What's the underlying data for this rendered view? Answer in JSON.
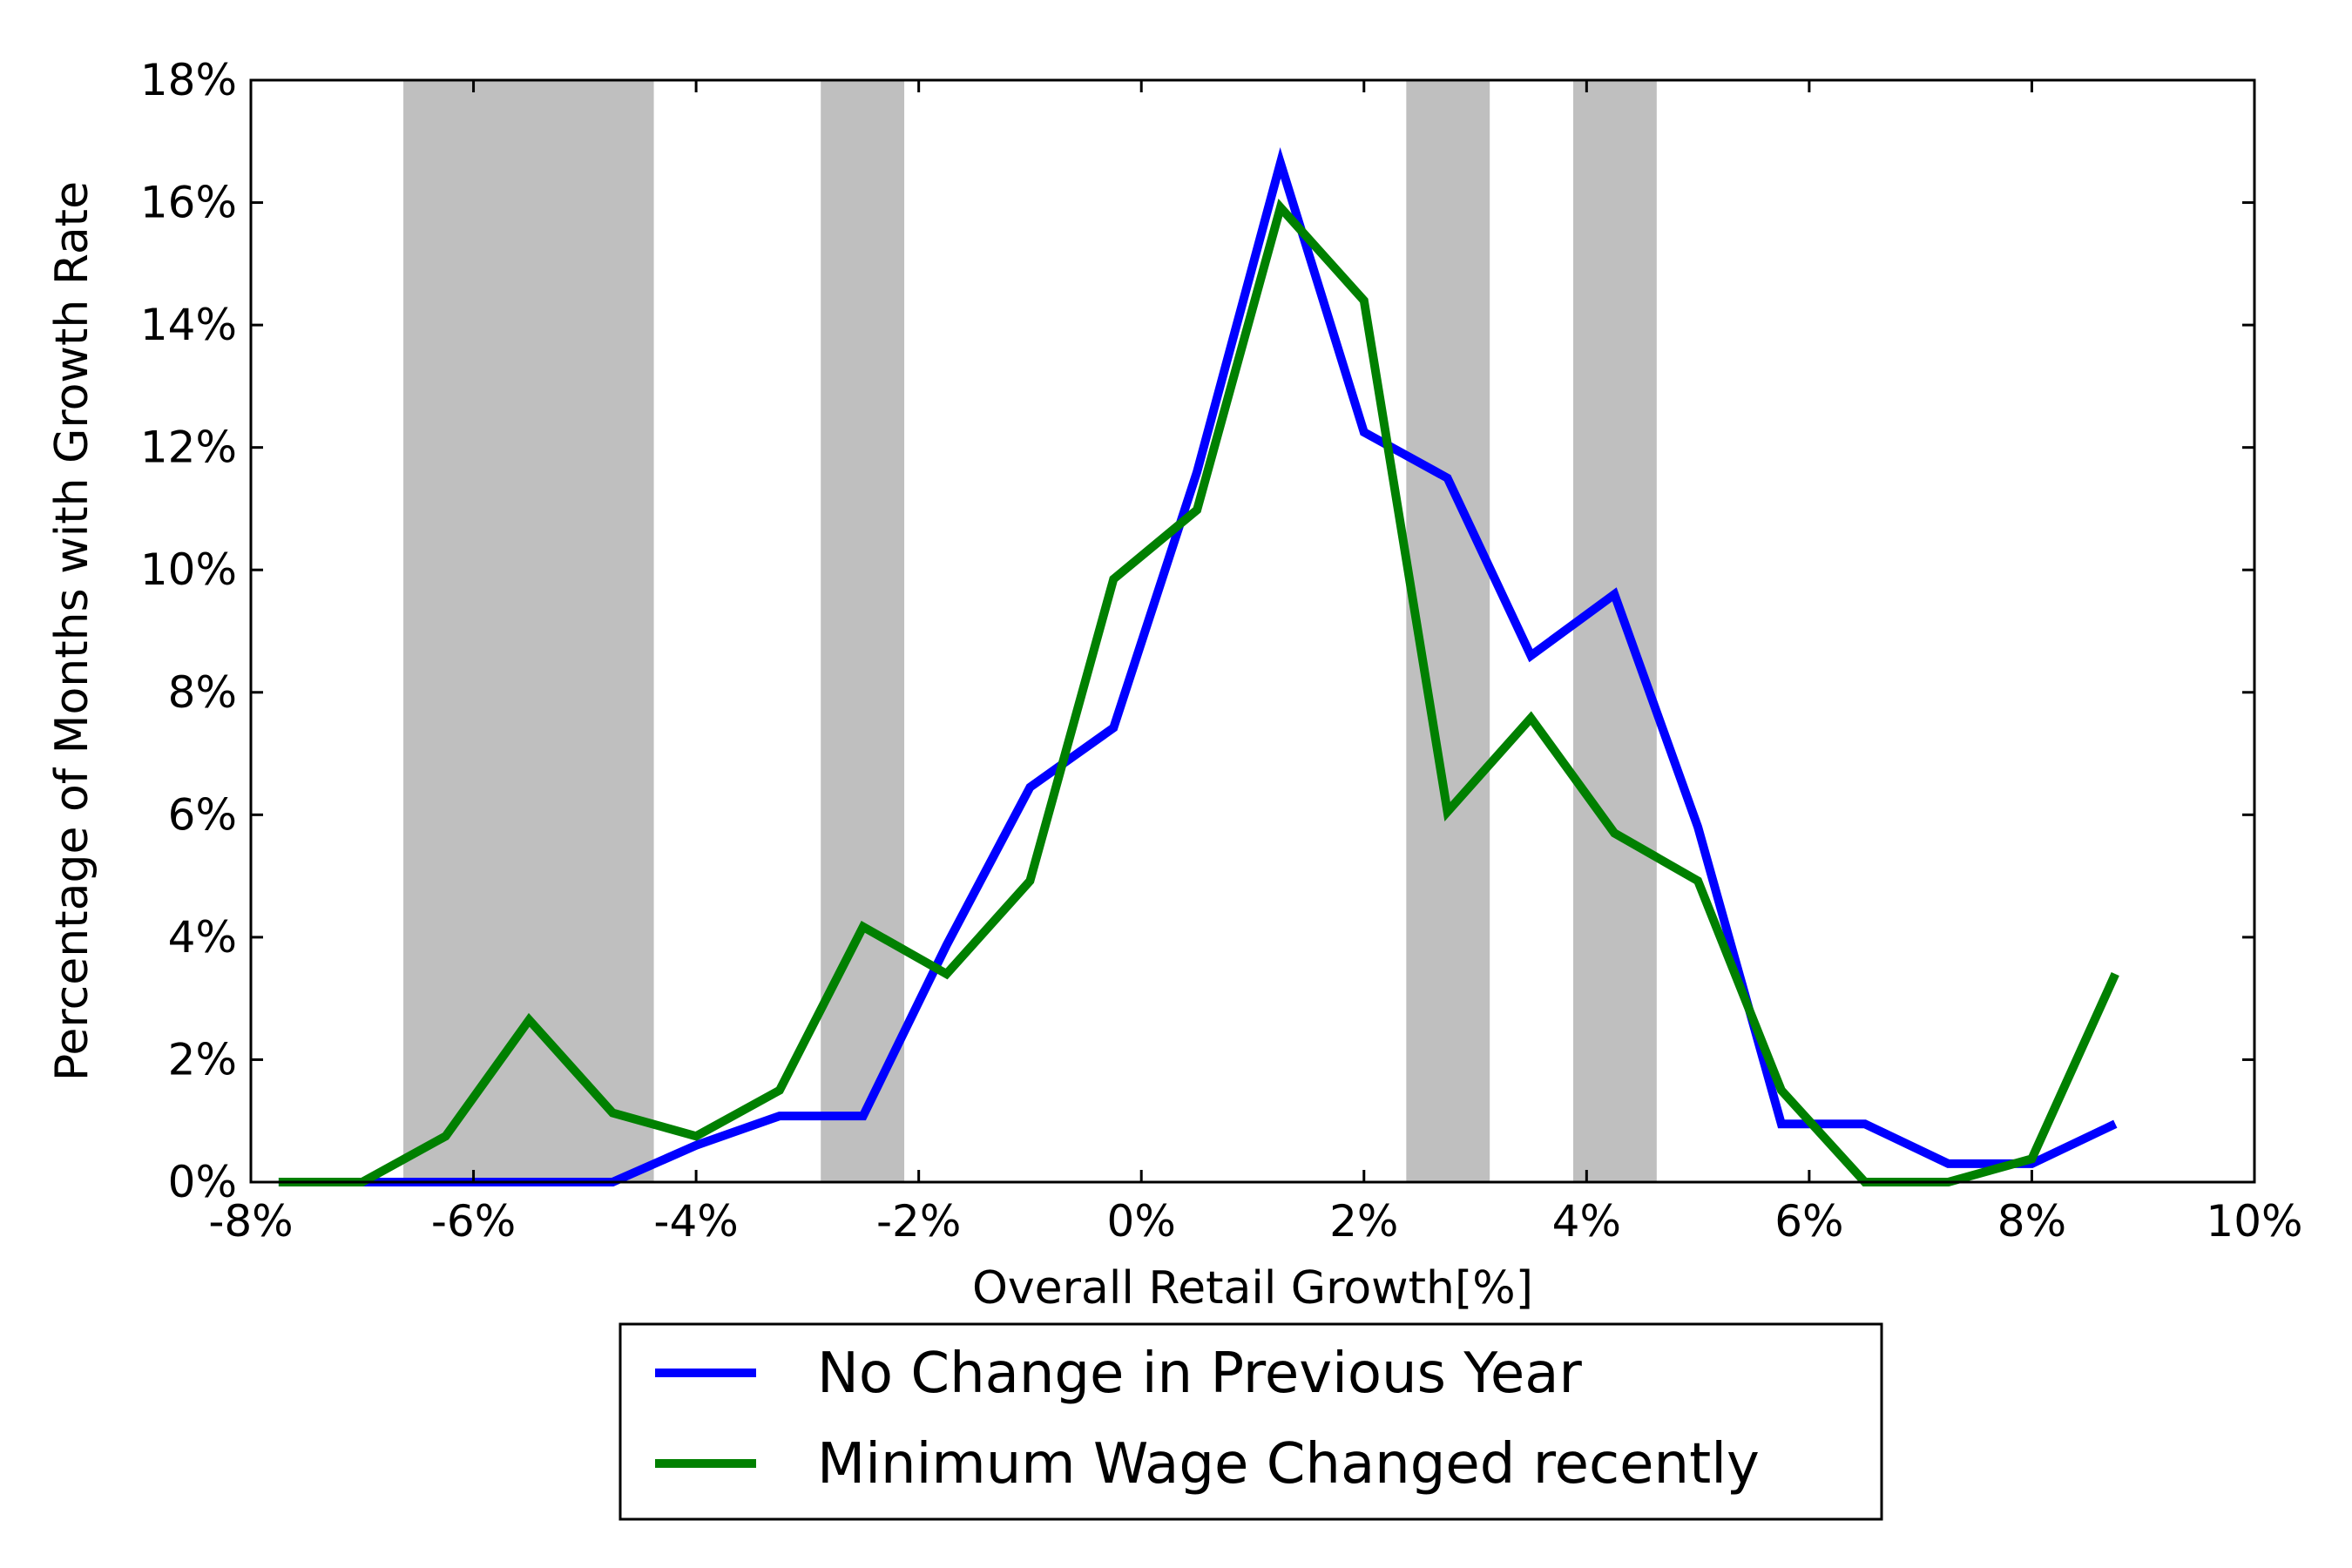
{
  "chart_data": {
    "type": "line",
    "title": "",
    "xlabel": "Overall Retail Growth[%]",
    "ylabel": "Percentage of Months with Growth Rate",
    "xlim": [
      -8,
      10
    ],
    "ylim": [
      0,
      18
    ],
    "x_ticks": [
      -8,
      -6,
      -4,
      -2,
      0,
      2,
      4,
      6,
      8,
      10
    ],
    "x_tick_labels": [
      "-8%",
      "-6%",
      "-4%",
      "-2%",
      "0%",
      "2%",
      "4%",
      "6%",
      "8%",
      "10%"
    ],
    "y_ticks": [
      0,
      2,
      4,
      6,
      8,
      10,
      12,
      14,
      16,
      18
    ],
    "y_tick_labels": [
      "0%",
      "2%",
      "4%",
      "6%",
      "8%",
      "10%",
      "12%",
      "14%",
      "16%",
      "18%"
    ],
    "grid": false,
    "legend_position": "bottom-center outside",
    "shaded_regions": [
      {
        "x_start": -6.63,
        "x_end": -4.38,
        "color": "#bfbfbf"
      },
      {
        "x_start": -2.88,
        "x_end": -2.13,
        "color": "#bfbfbf"
      },
      {
        "x_start": 2.38,
        "x_end": 3.13,
        "color": "#bfbfbf"
      },
      {
        "x_start": 3.88,
        "x_end": 4.63,
        "color": "#bfbfbf"
      }
    ],
    "series": [
      {
        "name": "No Change in Previous Year",
        "color": "#0000ff",
        "x": [
          -7.75,
          -7.0,
          -6.25,
          -5.5,
          -4.75,
          -4.0,
          -3.25,
          -2.5,
          -1.75,
          -1.0,
          -0.25,
          0.5,
          1.25,
          2.0,
          2.75,
          3.5,
          4.25,
          5.0,
          5.75,
          6.5,
          7.25,
          8.0,
          8.75
        ],
        "y": [
          0,
          0,
          0,
          0,
          0,
          0.6,
          1.08,
          1.08,
          3.87,
          6.45,
          7.42,
          11.6,
          16.65,
          12.25,
          11.5,
          8.6,
          9.6,
          5.8,
          0.95,
          0.95,
          0.3,
          0.3,
          0.95
        ]
      },
      {
        "name": "Minimum Wage Changed recently",
        "color": "#008000",
        "x": [
          -7.75,
          -7.0,
          -6.25,
          -5.5,
          -4.75,
          -4.0,
          -3.25,
          -2.5,
          -1.75,
          -1.0,
          -0.25,
          0.5,
          1.25,
          2.0,
          2.75,
          3.5,
          4.25,
          5.0,
          5.75,
          6.5,
          7.25,
          8.0,
          8.75
        ],
        "y": [
          0,
          0,
          0.75,
          2.65,
          1.13,
          0.75,
          1.5,
          4.17,
          3.4,
          4.92,
          9.85,
          10.98,
          15.92,
          14.4,
          6.05,
          7.58,
          5.7,
          4.92,
          1.5,
          0,
          0,
          0.38,
          3.4
        ]
      }
    ]
  }
}
